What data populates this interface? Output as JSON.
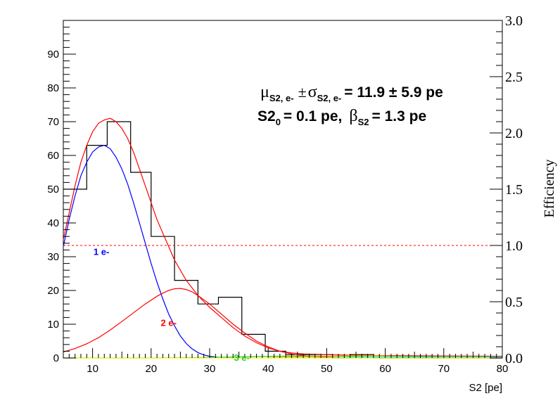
{
  "chart_data": {
    "type": "line",
    "xlabel": "S2 [pe]",
    "ylabel_right": "Efficiency",
    "xlim": [
      5,
      80
    ],
    "ylim": [
      0,
      100
    ],
    "ylim_right": [
      0.0,
      3.0
    ],
    "x_ticks": [
      10,
      20,
      30,
      40,
      50,
      60,
      70,
      80
    ],
    "y_ticks": [
      0,
      10,
      20,
      30,
      40,
      50,
      60,
      70,
      80,
      90
    ],
    "y_right_ticks": [
      "0.0",
      "0.5",
      "1.0",
      "1.5",
      "2.0",
      "2.5",
      "3.0"
    ],
    "annotation_line1": {
      "mu": "μ",
      "mu_sub": "S2, e-",
      "pm": "±",
      "sigma": "σ",
      "sigma_sub": "S2, e-",
      "value": "= 11.9 ± 5.9 pe"
    },
    "annotation_line2": {
      "s2": "S2",
      "s2_sub": "0",
      "value1": "= 0.1 pe,",
      "beta": "β",
      "beta_sub": "S2",
      "value2": "= 1.3 pe"
    },
    "labels": [
      {
        "text": "1 e-",
        "color": "#0000ff"
      },
      {
        "text": "2 e-",
        "color": "#ff0000"
      },
      {
        "text": "3 e-",
        "color": "#33cc33"
      }
    ],
    "histogram": {
      "bin_edges": [
        5,
        9,
        12.5,
        16.5,
        20,
        24,
        28,
        31.5,
        35.5,
        39.5,
        43,
        47,
        51,
        54,
        58,
        62,
        66,
        70,
        74,
        78,
        80
      ],
      "counts": [
        50,
        63,
        70,
        55,
        36,
        23,
        16,
        18,
        7,
        2,
        1,
        1,
        0,
        1,
        0,
        0,
        0,
        0,
        0,
        0
      ],
      "color": "#000000"
    },
    "series": [
      {
        "color": "#ff0000",
        "points": [
          [
            5,
            35
          ],
          [
            6,
            43
          ],
          [
            7,
            51
          ],
          [
            8,
            58
          ],
          [
            9,
            63
          ],
          [
            10,
            67
          ],
          [
            11,
            69.5
          ],
          [
            12,
            70.5
          ],
          [
            13,
            71
          ],
          [
            14,
            70
          ],
          [
            15,
            68
          ],
          [
            16,
            65
          ],
          [
            17,
            61
          ],
          [
            18,
            56
          ],
          [
            19,
            51
          ],
          [
            20,
            46
          ],
          [
            21,
            41
          ],
          [
            22,
            37
          ],
          [
            23,
            33
          ],
          [
            24,
            29
          ],
          [
            26,
            23
          ],
          [
            28,
            18.5
          ],
          [
            30,
            15
          ],
          [
            32,
            12
          ],
          [
            34,
            9
          ],
          [
            36,
            6.5
          ],
          [
            38,
            4.5
          ],
          [
            40,
            3
          ],
          [
            42,
            2
          ],
          [
            44,
            1.5
          ],
          [
            46,
            1.2
          ],
          [
            50,
            1
          ],
          [
            55,
            0.8
          ],
          [
            60,
            0.7
          ],
          [
            70,
            0.6
          ],
          [
            80,
            0.5
          ]
        ]
      },
      {
        "color": "#0000ff",
        "points": [
          [
            5,
            33
          ],
          [
            6,
            41
          ],
          [
            7,
            48
          ],
          [
            8,
            54
          ],
          [
            9,
            58
          ],
          [
            10,
            61
          ],
          [
            11,
            62.5
          ],
          [
            12,
            63
          ],
          [
            13,
            62
          ],
          [
            14,
            59.5
          ],
          [
            15,
            56
          ],
          [
            16,
            51.5
          ],
          [
            17,
            46
          ],
          [
            18,
            40
          ],
          [
            19,
            34
          ],
          [
            20,
            28
          ],
          [
            21,
            22.5
          ],
          [
            22,
            17.5
          ],
          [
            23,
            13
          ],
          [
            24,
            9.5
          ],
          [
            25,
            6.5
          ],
          [
            26,
            4.3
          ],
          [
            27,
            2.7
          ],
          [
            28,
            1.6
          ],
          [
            29,
            0.9
          ],
          [
            30,
            0.5
          ],
          [
            32,
            0.1
          ],
          [
            34,
            0
          ]
        ]
      },
      {
        "color": "#ff0000",
        "points": [
          [
            5,
            1.8
          ],
          [
            7,
            2.8
          ],
          [
            9,
            4.2
          ],
          [
            11,
            6
          ],
          [
            13,
            8.3
          ],
          [
            15,
            10.8
          ],
          [
            17,
            13.4
          ],
          [
            19,
            16
          ],
          [
            21,
            18.3
          ],
          [
            22,
            19.2
          ],
          [
            23,
            20
          ],
          [
            24,
            20.5
          ],
          [
            25,
            20.6
          ],
          [
            26,
            20.3
          ],
          [
            27,
            19.6
          ],
          [
            28,
            18.5
          ],
          [
            30,
            16
          ],
          [
            32,
            13
          ],
          [
            34,
            10
          ],
          [
            36,
            7.4
          ],
          [
            38,
            5
          ],
          [
            40,
            3.3
          ],
          [
            42,
            2
          ],
          [
            44,
            1.2
          ],
          [
            46,
            0.7
          ],
          [
            48,
            0.4
          ],
          [
            52,
            0.1
          ],
          [
            56,
            0
          ]
        ]
      },
      {
        "color": "#33cc33",
        "points": [
          [
            5,
            0
          ],
          [
            20,
            0
          ],
          [
            28,
            0.1
          ],
          [
            34,
            0.3
          ],
          [
            40,
            0.5
          ],
          [
            46,
            0.6
          ],
          [
            52,
            0.5
          ],
          [
            60,
            0.3
          ],
          [
            70,
            0.1
          ],
          [
            80,
            0
          ]
        ]
      },
      {
        "color": "#ffa500",
        "points": [
          [
            40,
            0.1
          ],
          [
            48,
            0.4
          ],
          [
            54,
            0.7
          ],
          [
            58,
            0.7
          ],
          [
            62,
            0.5
          ],
          [
            70,
            0.3
          ],
          [
            80,
            0.1
          ]
        ]
      },
      {
        "color": "#00ffff",
        "points": [
          [
            46,
            0
          ],
          [
            56,
            0.2
          ],
          [
            64,
            0.4
          ],
          [
            72,
            0.4
          ],
          [
            80,
            0.3
          ]
        ]
      },
      {
        "color": "#ffff00",
        "points": [
          [
            5,
            0
          ],
          [
            80,
            0
          ]
        ]
      }
    ],
    "efficiency_line": {
      "value": 1.0,
      "color": "#ff0000",
      "style": "dashed"
    }
  }
}
